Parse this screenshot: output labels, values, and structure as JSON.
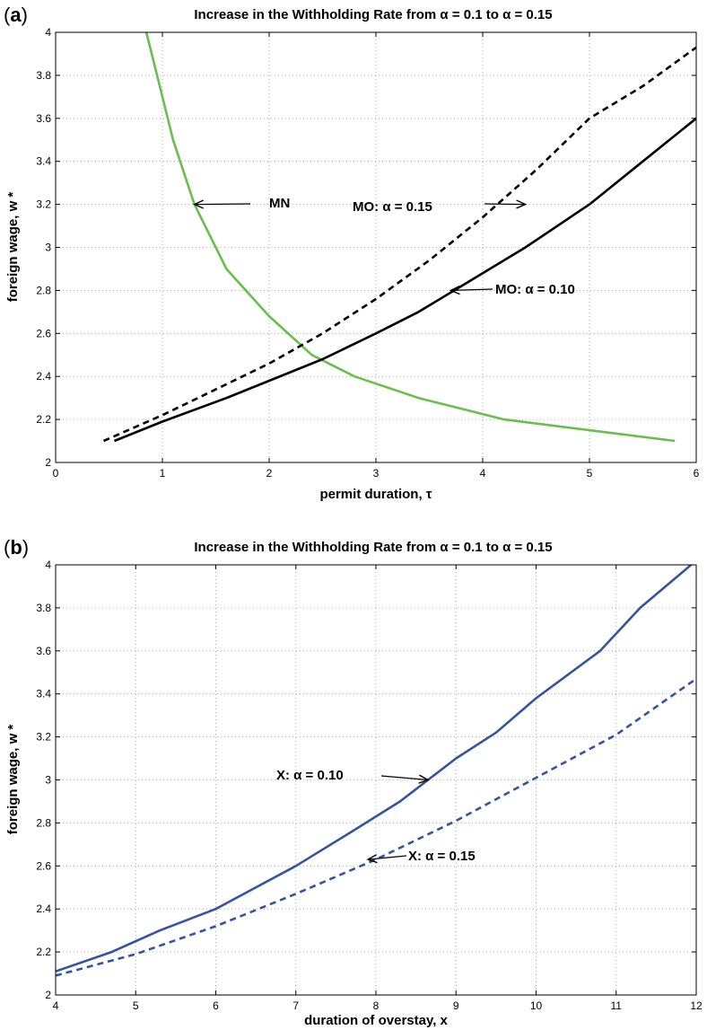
{
  "chart_data": [
    {
      "type": "line",
      "panel_label": "a",
      "title": "Increase in the Withholding Rate from α = 0.1 to α = 0.15",
      "xlabel": "permit duration, τ",
      "ylabel": "foreign wage, w *",
      "xlim": [
        0,
        6
      ],
      "ylim": [
        2,
        4
      ],
      "xticks": [
        "0",
        "1",
        "2",
        "3",
        "4",
        "5",
        "6"
      ],
      "yticks": [
        "2",
        "2.2",
        "2.4",
        "2.6",
        "2.8",
        "3",
        "3.2",
        "3.4",
        "3.6",
        "3.8",
        "4"
      ],
      "grid": true,
      "series": [
        {
          "name": "MN",
          "color": "#6abf4b",
          "style": "solid",
          "x": [
            0.85,
            0.95,
            1.1,
            1.3,
            1.6,
            2.0,
            2.4,
            2.8,
            3.4,
            4.2,
            5.0,
            5.8
          ],
          "y": [
            4.0,
            3.8,
            3.5,
            3.2,
            2.9,
            2.68,
            2.5,
            2.4,
            2.3,
            2.2,
            2.15,
            2.1
          ]
        },
        {
          "name": "MO: α = 0.15",
          "color": "#000000",
          "style": "dashed",
          "x": [
            0.45,
            1.0,
            1.5,
            2.0,
            2.5,
            3.0,
            3.5,
            4.0,
            4.5,
            5.0,
            5.5,
            6.0
          ],
          "y": [
            2.1,
            2.22,
            2.34,
            2.46,
            2.6,
            2.76,
            2.94,
            3.14,
            3.36,
            3.6,
            3.75,
            3.93
          ]
        },
        {
          "name": "MO: α = 0.10",
          "color": "#000000",
          "style": "solid",
          "x": [
            0.55,
            1.0,
            1.6,
            2.0,
            2.5,
            3.0,
            3.4,
            3.8,
            4.4,
            5.0,
            5.5,
            6.0
          ],
          "y": [
            2.1,
            2.19,
            2.3,
            2.38,
            2.48,
            2.6,
            2.7,
            2.82,
            3.0,
            3.2,
            3.4,
            3.6
          ]
        }
      ],
      "annotations": [
        {
          "text": "MN",
          "arrow_to": [
            1.3,
            3.2
          ]
        },
        {
          "text": "MO: α = 0.15",
          "arrow_to": [
            4.4,
            3.2
          ]
        },
        {
          "text": "MO: α = 0.10",
          "arrow_to": [
            3.7,
            2.8
          ]
        }
      ]
    },
    {
      "type": "line",
      "panel_label": "b",
      "title": "Increase in the Withholding Rate from α = 0.1 to α = 0.15",
      "xlabel": "duration of overstay, x",
      "ylabel": "foreign wage, w *",
      "xlim": [
        4,
        12
      ],
      "ylim": [
        2,
        4
      ],
      "xticks": [
        "4",
        "5",
        "6",
        "7",
        "8",
        "9",
        "10",
        "11",
        "12"
      ],
      "yticks": [
        "2",
        "2.2",
        "2.4",
        "2.6",
        "2.8",
        "3",
        "3.2",
        "3.4",
        "3.6",
        "3.8",
        "4"
      ],
      "grid": true,
      "series": [
        {
          "name": "X: α = 0.10",
          "color": "#3553a6",
          "style": "solid",
          "x": [
            4.0,
            4.7,
            5.3,
            6.0,
            7.0,
            7.7,
            8.3,
            9.0,
            9.5,
            10.0,
            10.8,
            11.3,
            12.0
          ],
          "y": [
            2.11,
            2.2,
            2.3,
            2.4,
            2.6,
            2.76,
            2.9,
            3.1,
            3.22,
            3.38,
            3.6,
            3.8,
            4.02
          ]
        },
        {
          "name": "X: α = 0.15",
          "color": "#3553a6",
          "style": "dashed",
          "x": [
            4.0,
            5.0,
            6.0,
            7.0,
            8.0,
            9.0,
            10.0,
            11.0,
            12.0
          ],
          "y": [
            2.09,
            2.19,
            2.32,
            2.47,
            2.63,
            2.81,
            3.01,
            3.21,
            3.47
          ]
        }
      ],
      "annotations": [
        {
          "text": "X: α = 0.10",
          "arrow_to": [
            8.65,
            3.0
          ]
        },
        {
          "text": "X: α = 0.15",
          "arrow_to": [
            7.9,
            2.63
          ]
        }
      ]
    }
  ]
}
